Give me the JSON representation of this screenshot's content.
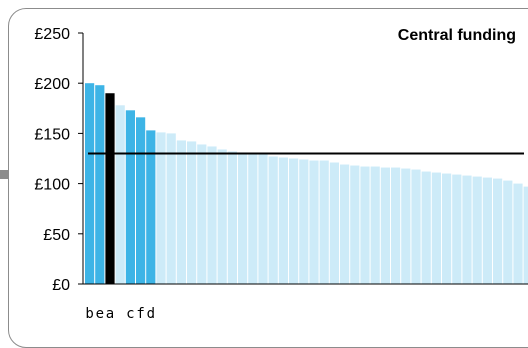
{
  "chart_data": {
    "type": "bar",
    "title": "Central funding",
    "xlabel": "",
    "ylabel": "",
    "ylim": [
      0,
      250
    ],
    "yticks": [
      "£0",
      "£50",
      "£100",
      "£150",
      "£200",
      "£250"
    ],
    "ytick_values": [
      0,
      50,
      100,
      150,
      200,
      250
    ],
    "grid": false,
    "values": [
      200,
      198,
      190,
      178,
      173,
      166,
      153,
      151,
      150,
      143,
      142,
      139,
      137,
      134,
      132,
      131,
      130,
      129,
      127,
      126,
      125,
      124,
      123,
      123,
      121,
      119,
      118,
      117,
      117,
      116,
      116,
      115,
      114,
      112,
      111,
      110,
      109,
      108,
      107,
      106,
      105,
      103,
      100,
      97,
      96
    ],
    "bar_roles": [
      "group",
      "group",
      "highlight",
      "light",
      "group",
      "group",
      "group",
      "light",
      "light",
      "light",
      "light",
      "light",
      "light",
      "light",
      "light",
      "light",
      "light",
      "light",
      "light",
      "light",
      "light",
      "light",
      "light",
      "light",
      "light",
      "light",
      "light",
      "light",
      "light",
      "light",
      "light",
      "light",
      "light",
      "light",
      "light",
      "light",
      "light",
      "light",
      "light",
      "light",
      "light",
      "light",
      "light",
      "light",
      "light"
    ],
    "reference_line": 130,
    "group_labels": [
      {
        "text": "b",
        "bar": 0
      },
      {
        "text": "e",
        "bar": 1
      },
      {
        "text": "a",
        "bar": 2
      },
      {
        "text": "c",
        "bar": 4
      },
      {
        "text": "f",
        "bar": 5
      },
      {
        "text": "d",
        "bar": 6
      }
    ],
    "colors": {
      "highlight": "#000000",
      "group": "#3db4e6",
      "light": "#cdebf8",
      "axis": "#000000",
      "reference_line": "#000000"
    }
  }
}
